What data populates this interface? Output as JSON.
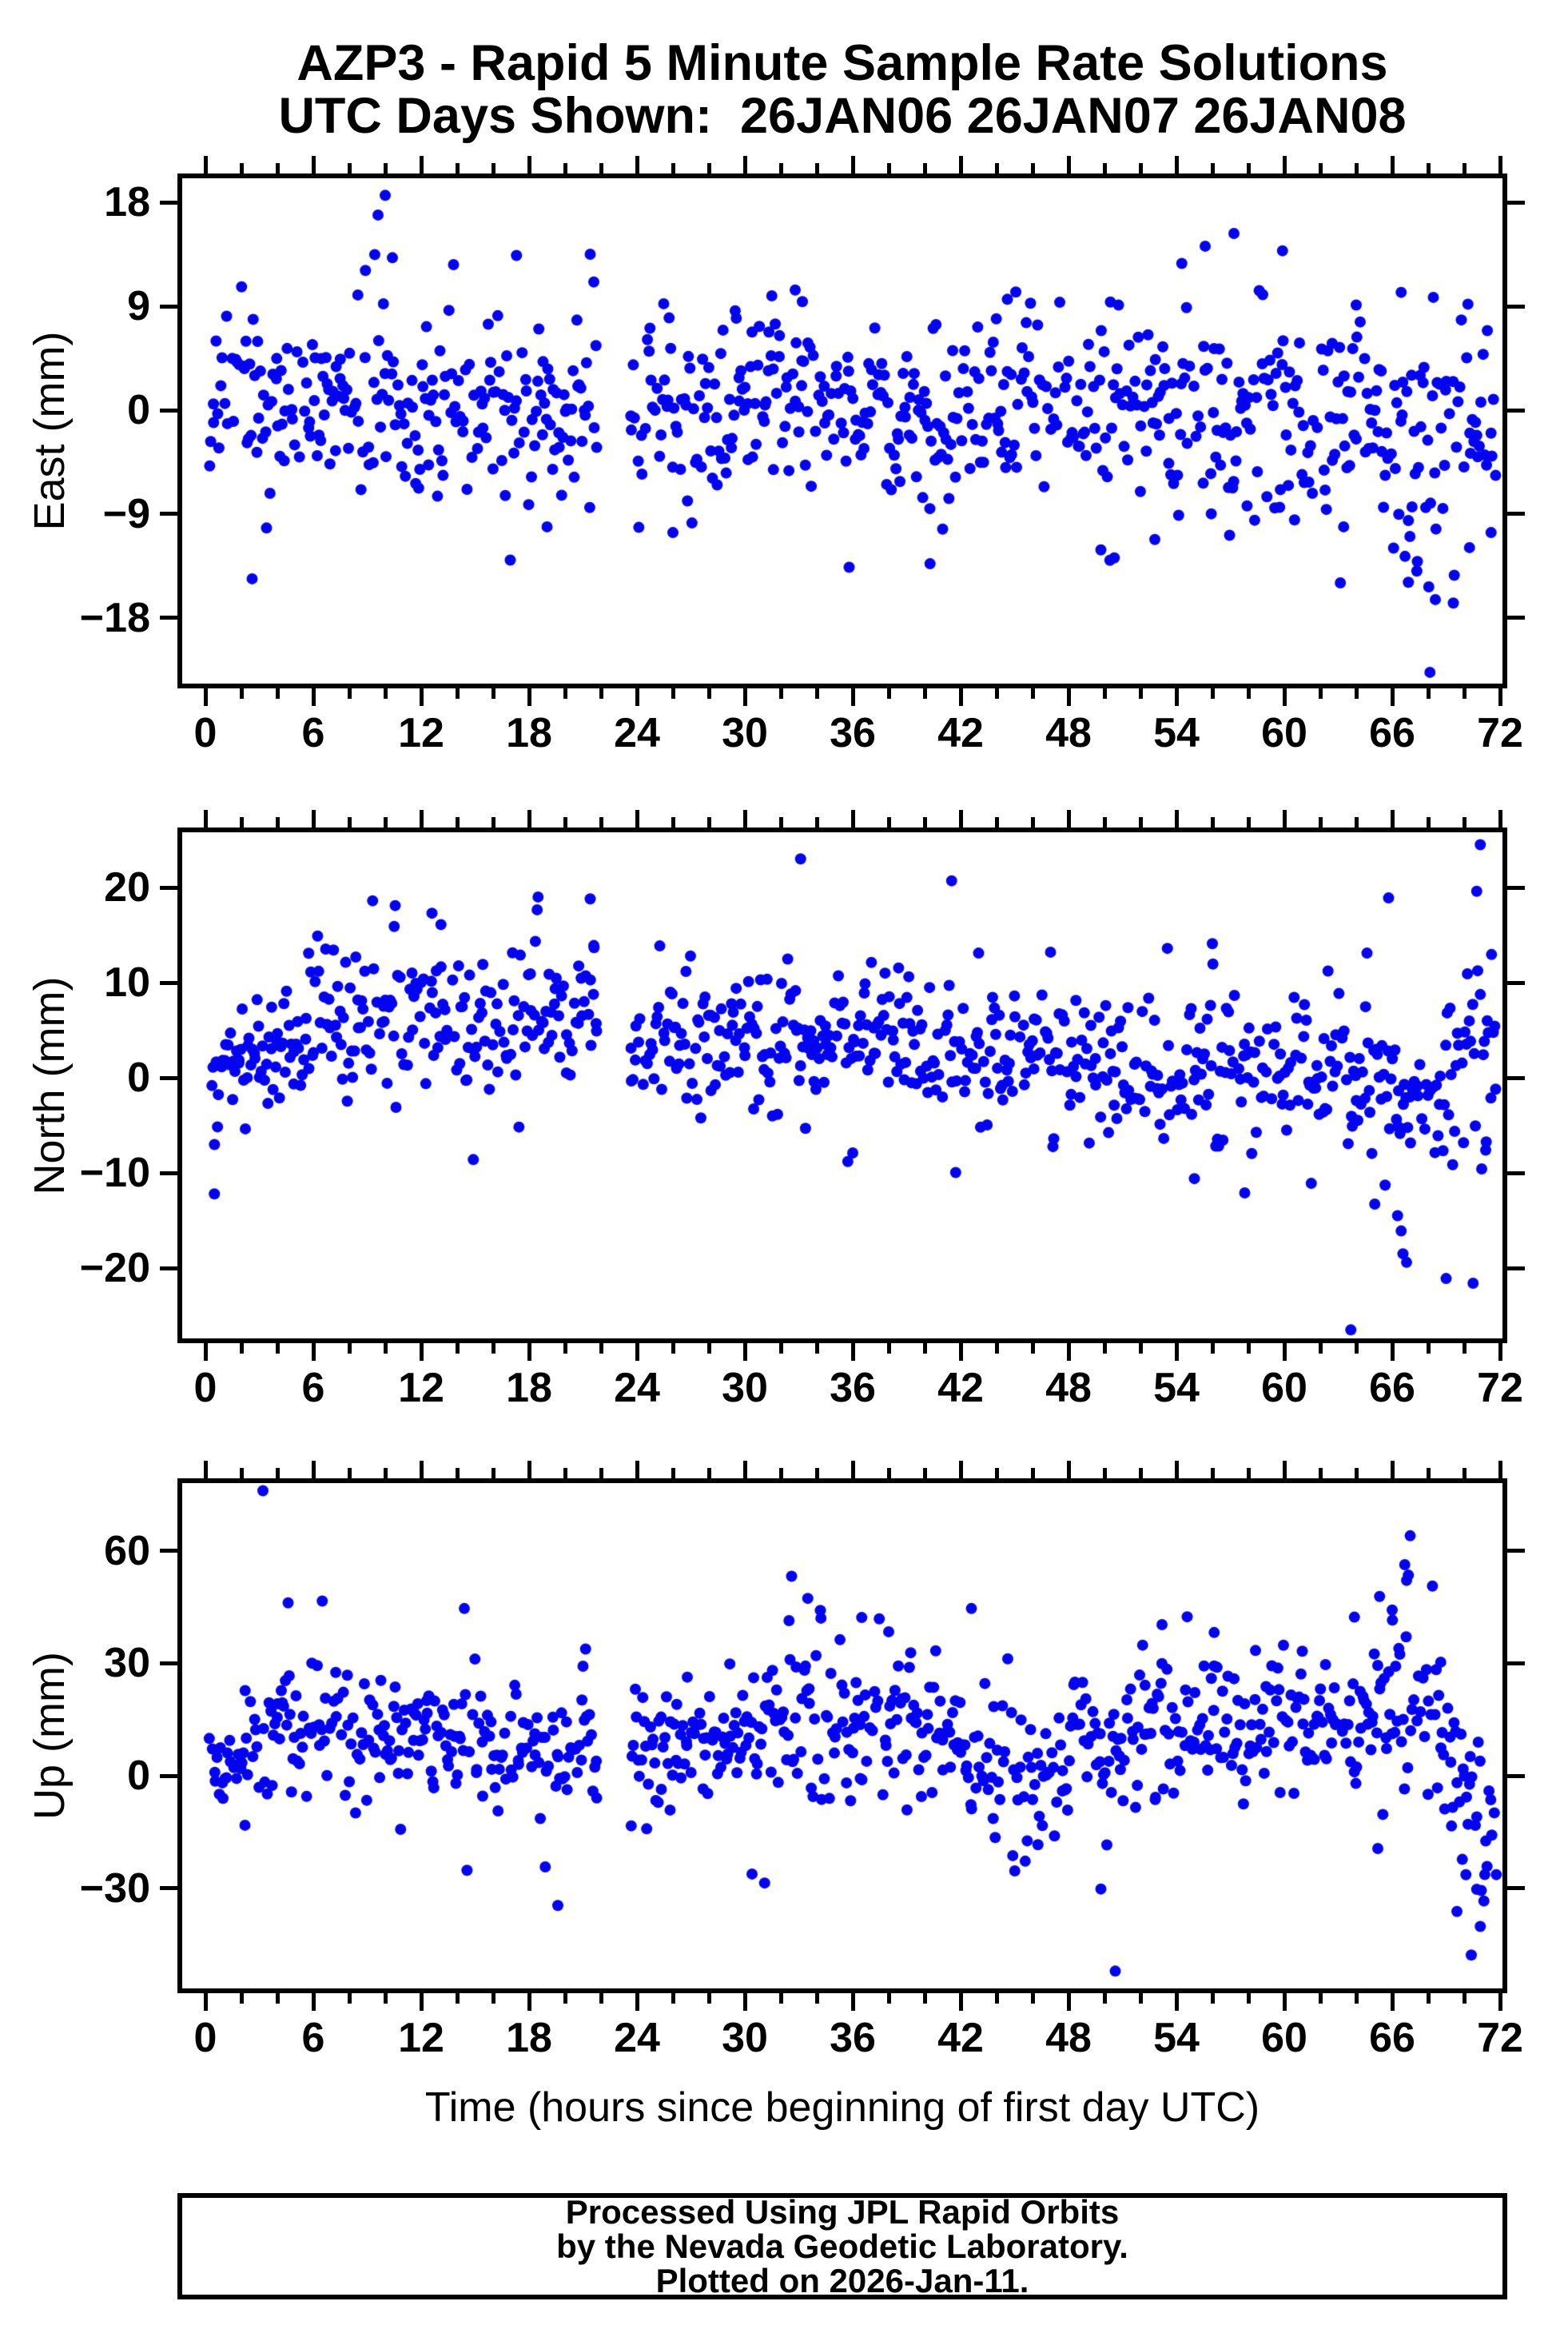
{
  "title": {
    "line1": "AZP3 - Rapid 5 Minute Sample Rate Solutions",
    "line2": "UTC Days Shown:  26JAN06 26JAN07 26JAN08"
  },
  "x_axis": {
    "label": "Time (hours since beginning of first day UTC)",
    "min": 0,
    "max": 72,
    "major_tick_step": 6,
    "minor_tick_step": 2,
    "tick_labels": [
      0,
      6,
      12,
      18,
      24,
      30,
      36,
      42,
      48,
      54,
      60,
      66,
      72
    ]
  },
  "style": {
    "dot_color": "#0404F0",
    "frame_color": "#000000",
    "background": "#FFFFFF",
    "text_color": "#000000"
  },
  "footer": {
    "line1": "Processed Using JPL Rapid Orbits",
    "line2": "by the Nevada Geodetic Laboratory.",
    "line3": "Plotted on 2026-Jan-11."
  },
  "chart_data": [
    {
      "type": "scatter",
      "name": "East",
      "ylabel": "East (mm)",
      "units": "mm",
      "marker": "circle",
      "yticks": [
        18,
        9,
        0,
        -9,
        -18
      ],
      "ylim": [
        -23.9,
        20.3
      ],
      "xlim": [
        0,
        72
      ],
      "sample_rate_per_hour": 12,
      "gap_hours": [
        21.8,
        23.6
      ],
      "trend_segments": [
        [
          0.2,
          4,
          0.8,
          0.8,
          4.0
        ],
        [
          4,
          10,
          0.8,
          1.2,
          3.8
        ],
        [
          10,
          16,
          0.8,
          0.2,
          4.2
        ],
        [
          16,
          21.8,
          0.3,
          0.5,
          4.2
        ],
        [
          23.6,
          30,
          -0.4,
          -0.2,
          3.6
        ],
        [
          30,
          36,
          0.8,
          0.5,
          3.8
        ],
        [
          36,
          42,
          -0.2,
          0.0,
          3.8
        ],
        [
          42,
          48,
          0.3,
          0.5,
          3.9
        ],
        [
          48,
          54,
          -0.8,
          -0.5,
          4.2
        ],
        [
          54,
          60,
          0.2,
          -0.3,
          4.4
        ],
        [
          60,
          66,
          -0.8,
          -1.5,
          4.2
        ],
        [
          66,
          71.8,
          -2.0,
          -3.5,
          5.5
        ]
      ],
      "outliers": [
        [
          2.6,
          -14.6
        ],
        [
          3.4,
          -10.2
        ],
        [
          8.9,
          12.1
        ],
        [
          9.6,
          16.9
        ],
        [
          10.0,
          18.6
        ],
        [
          10.4,
          13.2
        ],
        [
          13.8,
          12.6
        ],
        [
          17.3,
          13.4
        ],
        [
          19.0,
          -10.1
        ],
        [
          21.4,
          13.5
        ],
        [
          21.6,
          11.1
        ],
        [
          26.0,
          -10.6
        ],
        [
          31.5,
          9.9
        ],
        [
          32.8,
          10.4
        ],
        [
          33.2,
          9.4
        ],
        [
          35.8,
          -13.6
        ],
        [
          40.3,
          -13.3
        ],
        [
          41.0,
          -10.3
        ],
        [
          44.6,
          9.6
        ],
        [
          49.8,
          -12.1
        ],
        [
          50.3,
          -13.0
        ],
        [
          52.8,
          -11.2
        ],
        [
          54.3,
          12.7
        ],
        [
          55.6,
          14.2
        ],
        [
          57.2,
          15.3
        ],
        [
          58.8,
          10.0
        ],
        [
          59.9,
          13.8
        ],
        [
          63.3,
          -10.1
        ],
        [
          64.0,
          9.1
        ],
        [
          66.5,
          10.2
        ],
        [
          66.9,
          -14.9
        ],
        [
          67.4,
          -13.1
        ],
        [
          68.1,
          -22.7
        ],
        [
          68.4,
          -16.4
        ],
        [
          69.4,
          -16.7
        ],
        [
          70.3,
          -11.9
        ],
        [
          71.5,
          -10.6
        ]
      ]
    },
    {
      "type": "scatter",
      "name": "North",
      "ylabel": "North (mm)",
      "units": "mm",
      "marker": "circle",
      "yticks": [
        20,
        10,
        0,
        -10,
        -20
      ],
      "ylim": [
        -27.6,
        26.0
      ],
      "xlim": [
        0,
        72
      ],
      "sample_rate_per_hour": 12,
      "gap_hours": [
        21.8,
        23.6
      ],
      "trend_segments": [
        [
          0.2,
          2,
          0.3,
          2.0,
          3.0
        ],
        [
          2,
          6,
          2.0,
          4.5,
          3.4
        ],
        [
          6,
          12,
          5.0,
          6.5,
          4.0
        ],
        [
          12,
          18,
          6.0,
          5.5,
          4.4
        ],
        [
          18,
          21.8,
          6.0,
          7.5,
          4.2
        ],
        [
          23.6,
          30,
          3.0,
          3.5,
          3.6
        ],
        [
          30,
          36,
          4.5,
          4.0,
          4.0
        ],
        [
          36,
          42,
          3.5,
          3.0,
          4.2
        ],
        [
          42,
          48,
          3.0,
          2.0,
          4.0
        ],
        [
          48,
          54,
          1.5,
          1.0,
          3.6
        ],
        [
          54,
          60,
          1.0,
          0.5,
          4.0
        ],
        [
          60,
          66,
          0.5,
          -0.5,
          4.4
        ],
        [
          66,
          69,
          -0.5,
          -1.0,
          5.0
        ],
        [
          69,
          71.8,
          0.0,
          1.0,
          6.0
        ]
      ],
      "outliers": [
        [
          0.5,
          -12.2
        ],
        [
          9.3,
          18.6
        ],
        [
          10.5,
          15.9
        ],
        [
          12.6,
          17.3
        ],
        [
          13.1,
          16.1
        ],
        [
          14.9,
          -8.6
        ],
        [
          18.5,
          19.0
        ],
        [
          21.4,
          18.8
        ],
        [
          21.6,
          13.9
        ],
        [
          33.1,
          23.0
        ],
        [
          36.0,
          -7.9
        ],
        [
          41.5,
          20.7
        ],
        [
          43.0,
          13.1
        ],
        [
          47.0,
          13.2
        ],
        [
          53.5,
          13.6
        ],
        [
          55.0,
          -10.6
        ],
        [
          56.0,
          14.1
        ],
        [
          57.8,
          -12.1
        ],
        [
          61.5,
          -11.1
        ],
        [
          63.7,
          -26.5
        ],
        [
          64.6,
          13.1
        ],
        [
          65.8,
          18.9
        ],
        [
          66.3,
          -14.5
        ],
        [
          66.5,
          -16.1
        ],
        [
          66.6,
          -18.5
        ],
        [
          66.8,
          -19.4
        ],
        [
          69.0,
          -21.1
        ],
        [
          70.5,
          -21.6
        ],
        [
          70.7,
          19.6
        ],
        [
          70.9,
          24.5
        ],
        [
          71.2,
          -7.6
        ]
      ]
    },
    {
      "type": "scatter",
      "name": "Up",
      "ylabel": "Up (mm)",
      "units": "mm",
      "marker": "circle",
      "yticks": [
        60,
        30,
        0,
        -30
      ],
      "ylim": [
        -57.4,
        78.7
      ],
      "xlim": [
        0,
        72
      ],
      "sample_rate_per_hour": 12,
      "gap_hours": [
        21.8,
        23.6
      ],
      "trend_segments": [
        [
          0.2,
          2,
          0,
          4,
          7
        ],
        [
          2,
          8,
          11,
          12,
          10
        ],
        [
          8,
          14,
          10,
          9,
          9
        ],
        [
          14,
          20,
          8,
          8,
          10
        ],
        [
          20,
          21.8,
          9,
          9,
          8
        ],
        [
          23.6,
          30,
          7,
          9,
          9
        ],
        [
          30,
          36,
          13,
          14,
          11
        ],
        [
          36,
          42,
          15,
          12,
          10
        ],
        [
          42,
          48,
          6,
          4,
          10
        ],
        [
          48,
          54,
          9,
          11,
          11
        ],
        [
          54,
          60,
          12,
          12,
          10
        ],
        [
          60,
          66,
          13,
          16,
          9
        ],
        [
          66,
          68.5,
          22,
          18,
          12
        ],
        [
          68.5,
          71.8,
          8,
          -12,
          14
        ]
      ],
      "outliers": [
        [
          2.2,
          -13.2
        ],
        [
          3.2,
          76.0
        ],
        [
          4.6,
          46.1
        ],
        [
          6.5,
          46.6
        ],
        [
          14.4,
          44.6
        ],
        [
          18.9,
          -24.3
        ],
        [
          19.6,
          -34.6
        ],
        [
          21.0,
          29.2
        ],
        [
          26.8,
          26.3
        ],
        [
          30.4,
          -26.2
        ],
        [
          31.1,
          -28.6
        ],
        [
          32.6,
          53.2
        ],
        [
          33.5,
          47.3
        ],
        [
          34.2,
          44.1
        ],
        [
          36.5,
          42.2
        ],
        [
          38.0,
          38.4
        ],
        [
          42.6,
          44.6
        ],
        [
          44.9,
          -21.3
        ],
        [
          46.3,
          -18.4
        ],
        [
          49.8,
          -30.2
        ],
        [
          50.6,
          -52.1
        ],
        [
          53.2,
          40.3
        ],
        [
          54.6,
          42.4
        ],
        [
          56.1,
          38.2
        ],
        [
          58.4,
          33.4
        ],
        [
          61.0,
          33.2
        ],
        [
          63.9,
          42.3
        ],
        [
          65.2,
          -19.4
        ],
        [
          65.3,
          47.8
        ],
        [
          66.0,
          44.2
        ],
        [
          66.7,
          56.3
        ],
        [
          66.8,
          52.1
        ],
        [
          66.9,
          53.5
        ],
        [
          67.0,
          64.0
        ],
        [
          68.7,
          30.3
        ],
        [
          69.3,
          -13.4
        ],
        [
          69.6,
          -36.2
        ],
        [
          69.9,
          -22.3
        ],
        [
          70.1,
          -26.4
        ],
        [
          70.4,
          -47.8
        ],
        [
          70.7,
          -30.3
        ],
        [
          70.9,
          -40.2
        ],
        [
          71.1,
          -33.4
        ]
      ]
    }
  ]
}
